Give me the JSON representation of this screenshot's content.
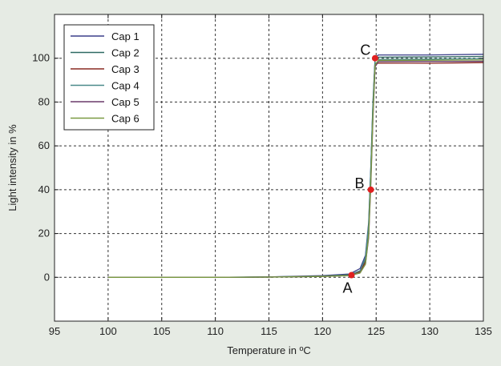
{
  "chart_data": {
    "type": "line",
    "title": "",
    "xlabel": "Temperature in ºC",
    "ylabel": "Light intensity in %",
    "xlim": [
      95,
      135
    ],
    "ylim": [
      -20,
      120
    ],
    "xticks": [
      95,
      100,
      105,
      110,
      115,
      120,
      125,
      130,
      135
    ],
    "yticks": [
      0,
      20,
      40,
      60,
      80,
      100
    ],
    "xtick_labels": [
      "95",
      "100",
      "105",
      "110",
      "115",
      "120",
      "125",
      "130",
      "135"
    ],
    "ytick_labels": [
      "0",
      "20",
      "40",
      "60",
      "80",
      "100"
    ],
    "grid": true,
    "legend_position": "top-left",
    "series": [
      {
        "name": "Cap 1",
        "color": "#3b3f8a",
        "x": [
          100,
          105,
          110,
          115,
          120,
          122.5,
          123.5,
          124.0,
          124.3,
          124.5,
          124.7,
          124.9,
          125.2,
          130,
          135
        ],
        "y": [
          0,
          0,
          0,
          0.2,
          0.8,
          1.5,
          4,
          10,
          25,
          50,
          80,
          100,
          101.5,
          101.5,
          101.8
        ]
      },
      {
        "name": "Cap 2",
        "color": "#2f6a63",
        "x": [
          100,
          105,
          110,
          115,
          120,
          122.5,
          123.5,
          124.0,
          124.3,
          124.5,
          124.7,
          124.9,
          125.2,
          130,
          135
        ],
        "y": [
          0,
          0,
          0,
          0.2,
          0.6,
          1.2,
          3,
          8,
          22,
          48,
          78,
          99,
          100.5,
          100.6,
          100.8
        ]
      },
      {
        "name": "Cap 3",
        "color": "#8a2a22",
        "x": [
          100,
          105,
          110,
          115,
          120,
          122.5,
          123.5,
          124.0,
          124.3,
          124.5,
          124.7,
          124.9,
          125.2,
          130,
          135
        ],
        "y": [
          0,
          0,
          0,
          0.1,
          0.5,
          1.0,
          2.5,
          7,
          20,
          45,
          75,
          97,
          97.8,
          97.7,
          98
        ]
      },
      {
        "name": "Cap 4",
        "color": "#4a8a8a",
        "x": [
          100,
          105,
          110,
          115,
          120,
          122.5,
          123.5,
          124.0,
          124.3,
          124.5,
          124.7,
          124.9,
          125.2,
          130,
          135
        ],
        "y": [
          0,
          0,
          0,
          0.1,
          0.5,
          1.0,
          3,
          9,
          24,
          50,
          79,
          99,
          99.5,
          99.6,
          99.8
        ]
      },
      {
        "name": "Cap 5",
        "color": "#6a3a6a",
        "x": [
          100,
          105,
          110,
          115,
          120,
          122.5,
          123.5,
          124.0,
          124.3,
          124.5,
          124.7,
          124.9,
          125.2,
          130,
          135
        ],
        "y": [
          0,
          0,
          0,
          0.1,
          0.4,
          0.8,
          2,
          6,
          18,
          42,
          72,
          96,
          98.5,
          98.5,
          98.6
        ]
      },
      {
        "name": "Cap 6",
        "color": "#7a9a42",
        "x": [
          100,
          105,
          110,
          115,
          120,
          122.5,
          123.5,
          124.0,
          124.3,
          124.5,
          124.7,
          124.9,
          125.2,
          130,
          135
        ],
        "y": [
          0,
          0,
          0,
          0.1,
          0.4,
          0.8,
          2,
          6,
          19,
          44,
          74,
          97,
          99,
          99.1,
          99.2
        ]
      }
    ],
    "annotations": [
      {
        "label": "A",
        "x": 122.7,
        "y": 1,
        "label_dx": -5,
        "label_dy": 22
      },
      {
        "label": "B",
        "x": 124.5,
        "y": 40,
        "label_dx": -14,
        "label_dy": -2
      },
      {
        "label": "C",
        "x": 124.9,
        "y": 100,
        "label_dx": -12,
        "label_dy": -4
      }
    ],
    "colors": {
      "background": "#e6ebe4",
      "plot_area": "#ffffff",
      "marker": "#e02020",
      "grid": "#333333"
    }
  }
}
